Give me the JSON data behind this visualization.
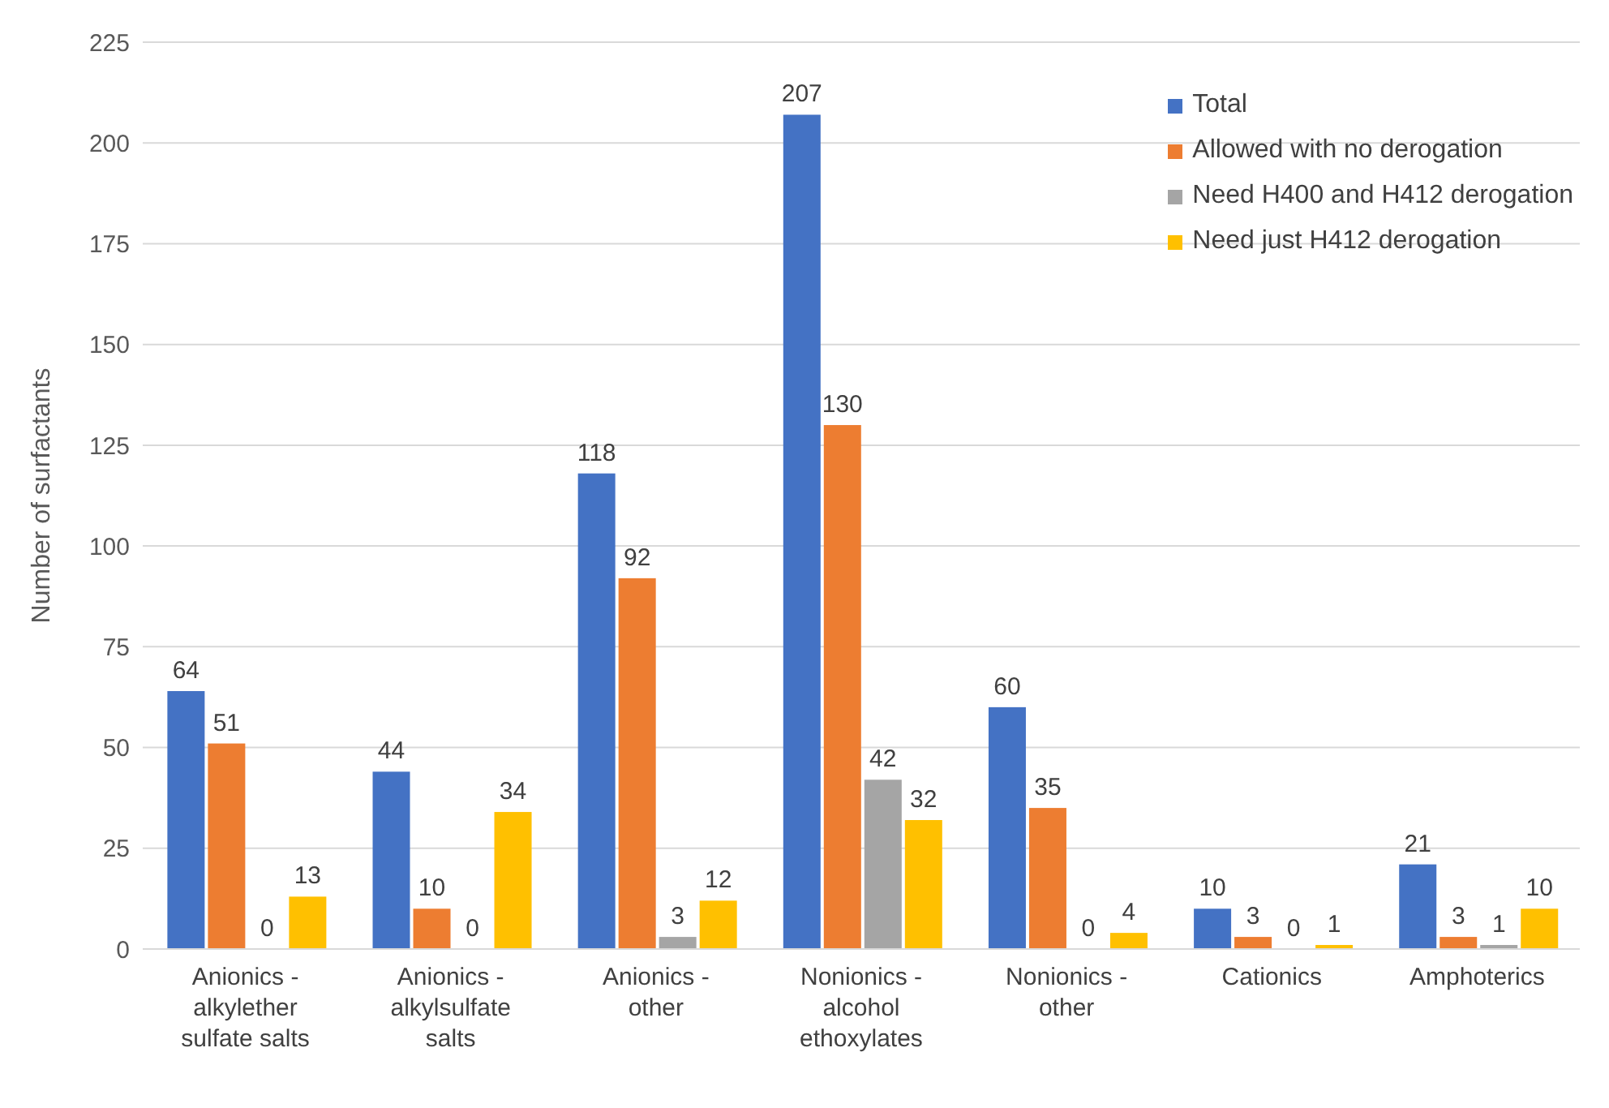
{
  "chart_data": {
    "type": "bar",
    "ylabel": "Number of surfactants",
    "categories": [
      "Anionics - alkylether sulfate salts",
      "Anionics - alkylsulfate salts",
      "Anionics - other",
      "Nonionics - alcohol ethoxylates",
      "Nonionics - other",
      "Cationics",
      "Amphoterics"
    ],
    "series": [
      {
        "name": "Total",
        "color": "#4472c4",
        "values": [
          64,
          44,
          118,
          207,
          60,
          10,
          21
        ]
      },
      {
        "name": "Allowed with no derogation",
        "color": "#ed7d31",
        "values": [
          51,
          10,
          92,
          130,
          35,
          3,
          3
        ]
      },
      {
        "name": "Need H400 and H412 derogation",
        "color": "#a5a5a5",
        "values": [
          0,
          0,
          3,
          42,
          0,
          0,
          1
        ]
      },
      {
        "name": "Need just H412 derogation",
        "color": "#ffc000",
        "values": [
          13,
          34,
          12,
          32,
          4,
          1,
          10
        ]
      }
    ],
    "ylim": [
      0,
      225
    ],
    "yticks": [
      0,
      25,
      50,
      75,
      100,
      125,
      150,
      175,
      200,
      225
    ],
    "grid": "y",
    "legend": "top right",
    "data_labels": true
  }
}
